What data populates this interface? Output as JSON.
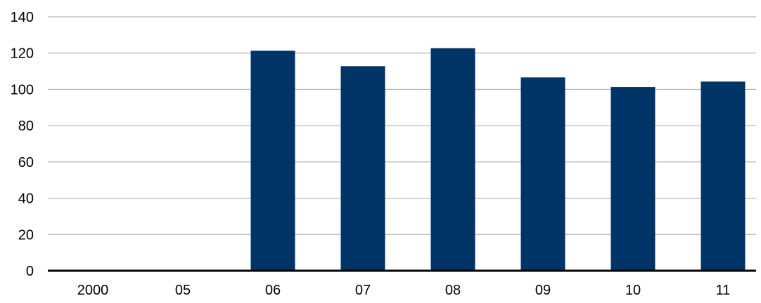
{
  "chart_data": {
    "type": "bar",
    "categories": [
      "2000",
      "05",
      "06",
      "07",
      "08",
      "09",
      "10",
      "11"
    ],
    "values": [
      null,
      null,
      121.3,
      112.8,
      122.7,
      106.6,
      101.3,
      104.3
    ],
    "title": "",
    "xlabel": "",
    "ylabel": "",
    "ylim": [
      0,
      140
    ],
    "yticks": [
      0,
      20,
      40,
      60,
      80,
      100,
      120,
      140
    ],
    "grid": true,
    "legend": "none",
    "colors": {
      "bar": "#003366",
      "grid": "#a6a6a6",
      "axis": "#000000"
    }
  }
}
